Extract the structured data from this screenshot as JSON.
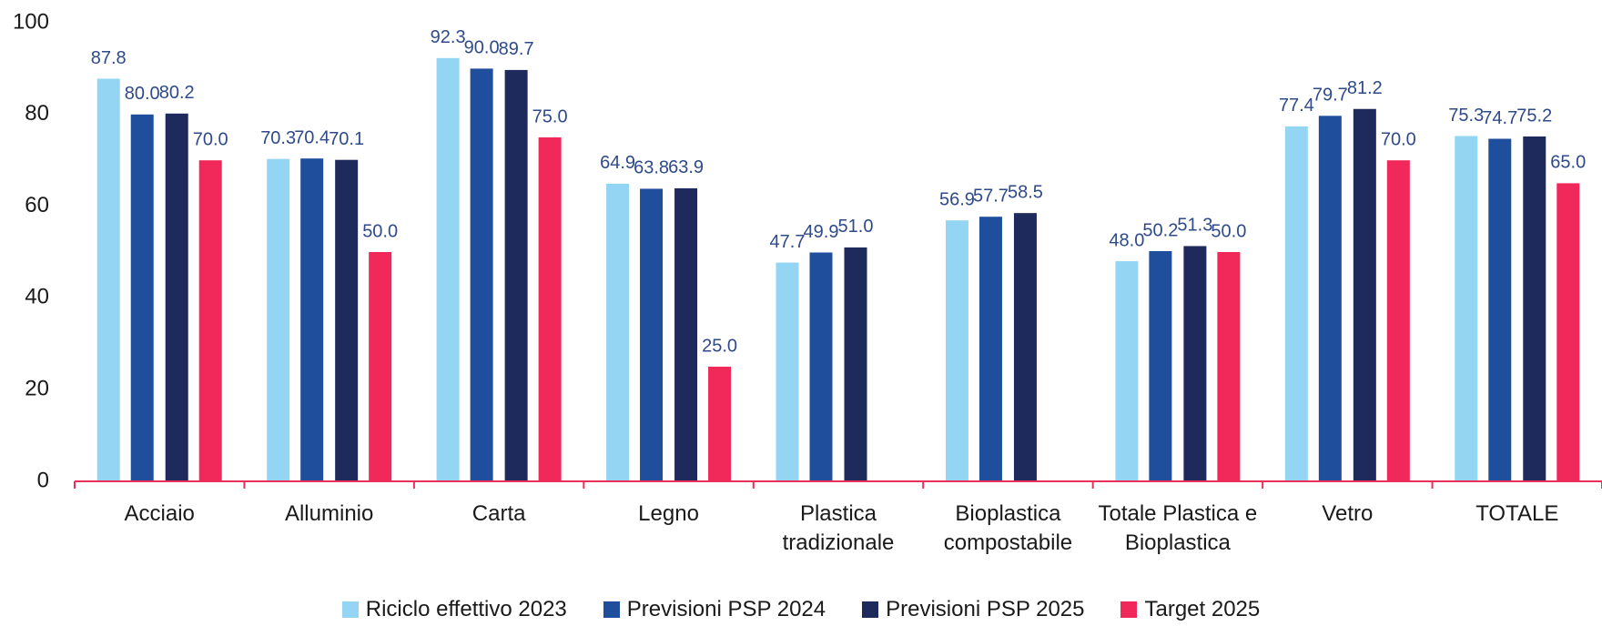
{
  "chart_data": {
    "type": "bar",
    "categories": [
      "Acciaio",
      "Alluminio",
      "Carta",
      "Legno",
      "Plastica tradizionale",
      "Bioplastica compostabile",
      "Totale Plastica e Bioplastica",
      "Vetro",
      "TOTALE"
    ],
    "series": [
      {
        "name": "Riciclo effettivo 2023",
        "color": "#93d5f2",
        "values": [
          87.8,
          70.3,
          92.3,
          64.9,
          47.7,
          56.9,
          48.0,
          77.4,
          75.3
        ],
        "value_labels": [
          "87.8",
          "70.3",
          "92.3",
          "64.9",
          "47.7",
          "56.9",
          "48.0",
          "77.4",
          "75.3"
        ]
      },
      {
        "name": "Previsioni PSP 2024",
        "color": "#1f4e9c",
        "values": [
          80.0,
          70.4,
          90.0,
          63.8,
          49.9,
          57.7,
          50.2,
          79.7,
          74.7
        ],
        "value_labels": [
          "80.0",
          "70.4",
          "90.0",
          "63.8",
          "49.9",
          "57.7",
          "50.2",
          "79.7",
          "74.7"
        ]
      },
      {
        "name": "Previsioni PSP 2025",
        "color": "#1f2a5c",
        "values": [
          80.2,
          70.1,
          89.7,
          63.9,
          51.0,
          58.5,
          51.3,
          81.2,
          75.2
        ],
        "value_labels": [
          "80.2",
          "70.1",
          "89.7",
          "63.9",
          "51.0",
          "58.5",
          "51.3",
          "81.2",
          "75.2"
        ]
      },
      {
        "name": "Target 2025",
        "color": "#f0295a",
        "values": [
          70.0,
          50.0,
          75.0,
          25.0,
          null,
          null,
          50.0,
          70.0,
          65.0
        ],
        "value_labels": [
          "70.0",
          "50.0",
          "75.0",
          "25.0",
          null,
          null,
          "50.0",
          "70.0",
          "65.0"
        ]
      }
    ],
    "ylim": [
      0,
      100
    ],
    "yticks": [
      0,
      20,
      40,
      60,
      80,
      100
    ],
    "grid": false,
    "legend": "bottom"
  }
}
